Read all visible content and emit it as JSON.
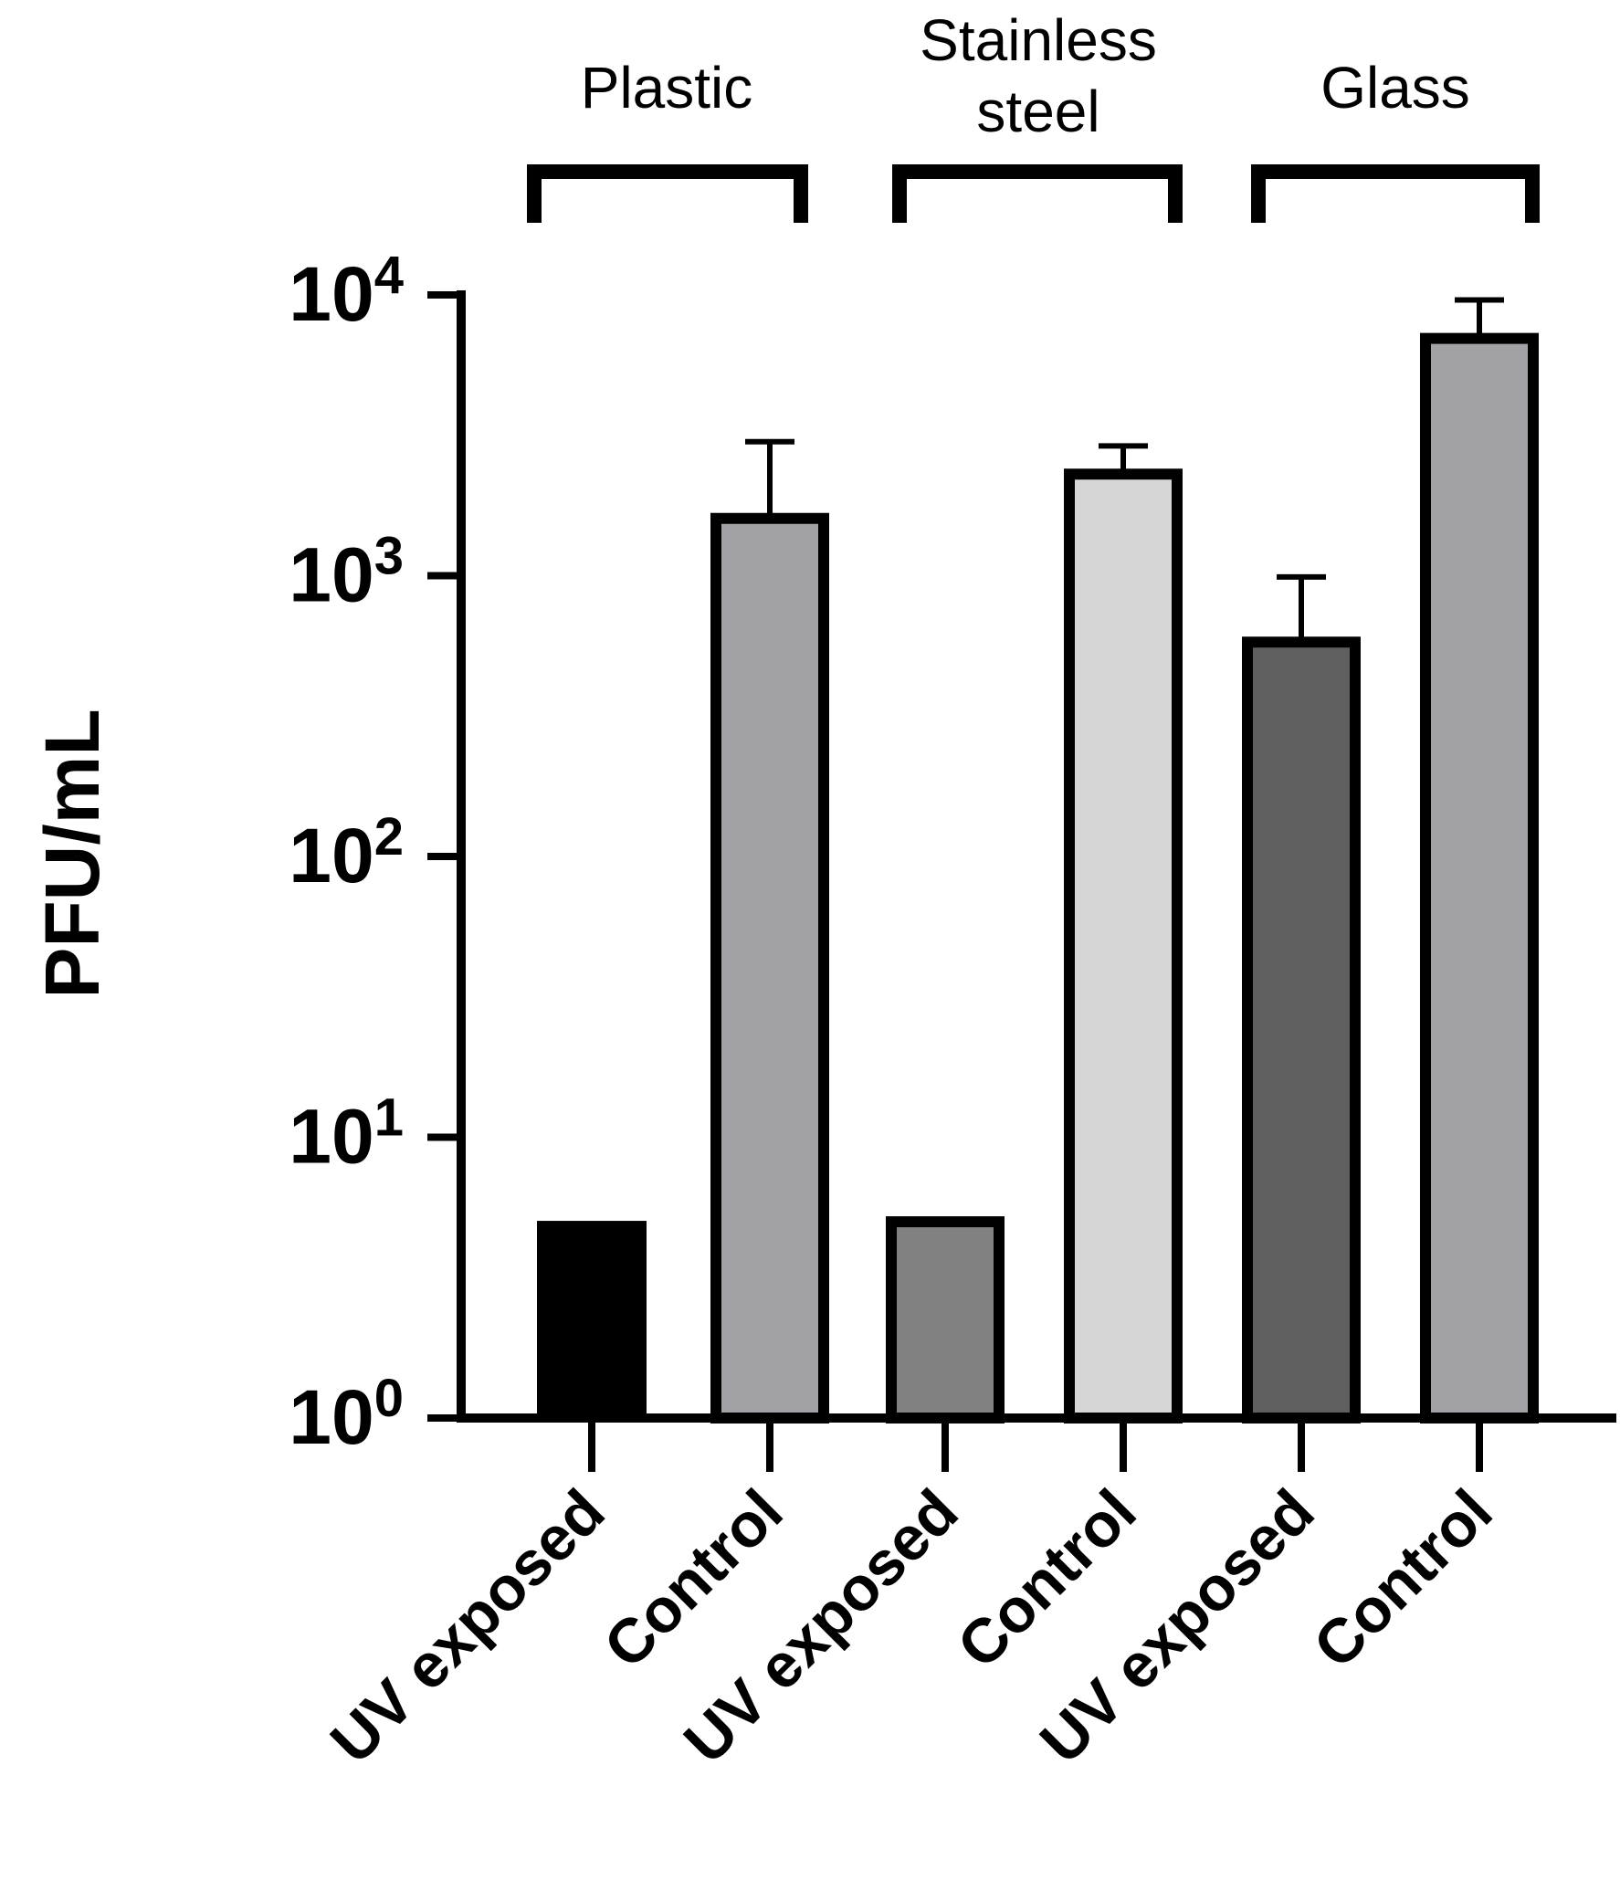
{
  "chart_data": {
    "type": "bar",
    "ylabel": "PFU/mL",
    "y_scale": "log",
    "ylim": [
      1,
      10000
    ],
    "yticks": [
      {
        "base": "10",
        "exp": "0",
        "value": 1
      },
      {
        "base": "10",
        "exp": "1",
        "value": 10
      },
      {
        "base": "10",
        "exp": "2",
        "value": 100
      },
      {
        "base": "10",
        "exp": "3",
        "value": 1000
      },
      {
        "base": "10",
        "exp": "4",
        "value": 10000
      }
    ],
    "groups": [
      {
        "label_lines": [
          "Plastic"
        ],
        "categories": [
          0,
          1
        ]
      },
      {
        "label_lines": [
          "Stainless",
          "steel"
        ],
        "categories": [
          2,
          3
        ]
      },
      {
        "label_lines": [
          "Glass"
        ],
        "categories": [
          4,
          5
        ]
      }
    ],
    "categories": [
      "UV exposed",
      "Control",
      "UV exposed",
      "Control",
      "UV exposed",
      "Control"
    ],
    "values": [
      5,
      1600,
      5,
      2300,
      580,
      7000
    ],
    "error_upper": [
      null,
      3000,
      null,
      2900,
      990,
      9600
    ],
    "colors": [
      "#000000",
      "#a2a2a6",
      "#818181",
      "#d6d6d6",
      "#5f5f5f",
      "#a2a2a6"
    ],
    "grid": false
  }
}
